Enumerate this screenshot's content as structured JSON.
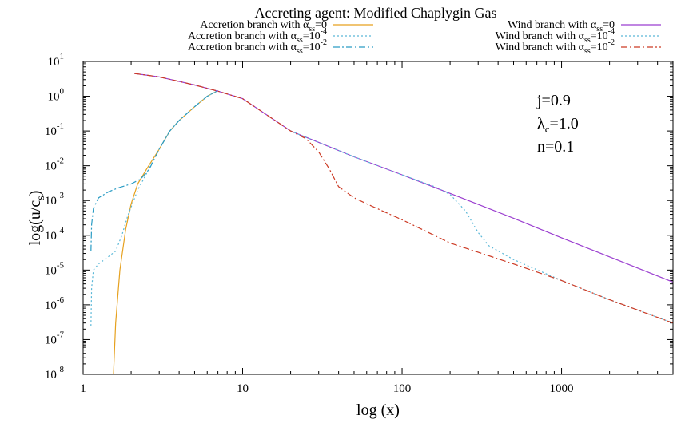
{
  "chart_data": {
    "type": "line",
    "title": "Accreting agent: Modified Chaplygin Gas",
    "xlabel": "log (x)",
    "ylabel_main": "log(u/c",
    "ylabel_sub": "s",
    "ylabel_close": ")",
    "x_scale": "log",
    "y_scale": "log",
    "xlim": [
      1,
      5000
    ],
    "ylim": [
      1e-08,
      10
    ],
    "x_ticks": [
      {
        "value": 1,
        "label": "1"
      },
      {
        "value": 10,
        "label": "10"
      },
      {
        "value": 100,
        "label": "100"
      },
      {
        "value": 1000,
        "label": "1000"
      }
    ],
    "y_ticks": [
      {
        "value": 10,
        "base": "10",
        "exp": "1"
      },
      {
        "value": 1,
        "base": "10",
        "exp": "0"
      },
      {
        "value": 0.1,
        "base": "10",
        "exp": "-1"
      },
      {
        "value": 0.01,
        "base": "10",
        "exp": "-2"
      },
      {
        "value": 0.001,
        "base": "10",
        "exp": "-3"
      },
      {
        "value": 0.0001,
        "base": "10",
        "exp": "-4"
      },
      {
        "value": 1e-05,
        "base": "10",
        "exp": "-5"
      },
      {
        "value": 1e-06,
        "base": "10",
        "exp": "-6"
      },
      {
        "value": 1e-07,
        "base": "10",
        "exp": "-7"
      },
      {
        "value": 1e-08,
        "base": "10",
        "exp": "-8"
      }
    ],
    "annotations": [
      {
        "main": "j=0.9",
        "sub": ""
      },
      {
        "main": "λ",
        "sub": "c",
        "tail": "=1.0"
      },
      {
        "main": "n=0.1",
        "sub": ""
      }
    ],
    "series": [
      {
        "name": "Accretion branch with α_ss=0",
        "label_pre": "Accretion branch with α",
        "label_sub": "ss",
        "label_post": "=0",
        "label_sup": "",
        "color": "#e6a11f",
        "dash": "",
        "points": [
          [
            1.55,
            1e-08
          ],
          [
            1.6,
            3e-07
          ],
          [
            1.7,
            1e-05
          ],
          [
            1.85,
            0.00015
          ],
          [
            2.0,
            0.0008
          ],
          [
            2.2,
            0.003
          ],
          [
            2.5,
            0.008
          ],
          [
            3.0,
            0.03
          ],
          [
            3.5,
            0.1
          ],
          [
            4.0,
            0.2
          ],
          [
            5.0,
            0.5
          ],
          [
            6.0,
            1.0
          ],
          [
            7.0,
            1.45
          ]
        ]
      },
      {
        "name": "Accretion branch with α_ss=10^-4",
        "label_pre": "Accretion branch with α",
        "label_sub": "ss",
        "label_post": "=10",
        "label_sup": "-4",
        "color": "#5bb8d8",
        "dash": "2,3",
        "points": [
          [
            1.12,
            2.5e-07
          ],
          [
            1.13,
            3e-06
          ],
          [
            1.16,
            1e-05
          ],
          [
            1.25,
            1.5e-05
          ],
          [
            1.4,
            2.2e-05
          ],
          [
            1.6,
            3.5e-05
          ],
          [
            1.75,
            0.0001
          ],
          [
            1.9,
            0.00035
          ],
          [
            2.2,
            0.002
          ],
          [
            2.5,
            0.006
          ],
          [
            3.0,
            0.03
          ],
          [
            3.5,
            0.1
          ],
          [
            4.0,
            0.2
          ],
          [
            5.0,
            0.5
          ],
          [
            6.0,
            1.0
          ],
          [
            7.0,
            1.45
          ]
        ]
      },
      {
        "name": "Accretion branch with α_ss=10^-2",
        "label_pre": "Accretion branch with α",
        "label_sub": "ss",
        "label_post": "=10",
        "label_sup": "-2",
        "color": "#2a9cc4",
        "dash": "8,3,2,3",
        "points": [
          [
            1.12,
            3.5e-05
          ],
          [
            1.13,
            0.0002
          ],
          [
            1.16,
            0.0006
          ],
          [
            1.25,
            0.0012
          ],
          [
            1.45,
            0.0018
          ],
          [
            1.7,
            0.0024
          ],
          [
            2.0,
            0.003
          ],
          [
            2.3,
            0.0042
          ],
          [
            2.6,
            0.008
          ],
          [
            3.0,
            0.03
          ],
          [
            3.5,
            0.1
          ],
          [
            4.0,
            0.2
          ],
          [
            5.0,
            0.5
          ],
          [
            6.0,
            1.0
          ],
          [
            7.0,
            1.45
          ]
        ]
      },
      {
        "name": "Wind branch with α_ss=0",
        "label_pre": "Wind branch with α",
        "label_sub": "ss",
        "label_post": "=0",
        "label_sup": "",
        "color": "#9b3fd0",
        "dash": "",
        "points": [
          [
            2.1,
            4.5
          ],
          [
            3,
            3.6
          ],
          [
            5,
            2.1
          ],
          [
            7,
            1.4
          ],
          [
            10,
            0.85
          ],
          [
            20,
            0.1
          ],
          [
            50,
            0.018
          ],
          [
            100,
            0.0055
          ],
          [
            200,
            0.0016
          ],
          [
            500,
            0.00031
          ],
          [
            1000,
            8.5e-05
          ],
          [
            2000,
            2.4e-05
          ],
          [
            5000,
            4.5e-06
          ]
        ]
      },
      {
        "name": "Wind branch with α_ss=10^-4",
        "label_pre": "Wind branch with α",
        "label_sub": "ss",
        "label_post": "=10",
        "label_sup": "-4",
        "color": "#5bb8d8",
        "dash": "2,3",
        "points": [
          [
            20,
            0.1
          ],
          [
            50,
            0.018
          ],
          [
            100,
            0.0055
          ],
          [
            160,
            0.0025
          ],
          [
            200,
            0.0015
          ],
          [
            250,
            0.0005
          ],
          [
            300,
            0.00012
          ],
          [
            350,
            5e-05
          ],
          [
            500,
            2e-05
          ],
          [
            1000,
            5e-06
          ],
          [
            2000,
            1.4e-06
          ],
          [
            5000,
            3e-07
          ]
        ]
      },
      {
        "name": "Wind branch with α_ss=10^-2",
        "label_pre": "Wind branch with α",
        "label_sub": "ss",
        "label_post": "=10",
        "label_sup": "-2",
        "color": "#cc3a24",
        "dash": "8,3,2,3",
        "points": [
          [
            2.1,
            4.5
          ],
          [
            3,
            3.6
          ],
          [
            5,
            2.1
          ],
          [
            7,
            1.4
          ],
          [
            10,
            0.85
          ],
          [
            20,
            0.1
          ],
          [
            25,
            0.06
          ],
          [
            30,
            0.025
          ],
          [
            35,
            0.008
          ],
          [
            40,
            0.0025
          ],
          [
            50,
            0.0012
          ],
          [
            60,
            0.0008
          ],
          [
            100,
            0.00028
          ],
          [
            200,
            6e-05
          ],
          [
            500,
            1.5e-05
          ],
          [
            1000,
            5e-06
          ],
          [
            2000,
            1.4e-06
          ],
          [
            5000,
            3e-07
          ]
        ]
      }
    ]
  }
}
